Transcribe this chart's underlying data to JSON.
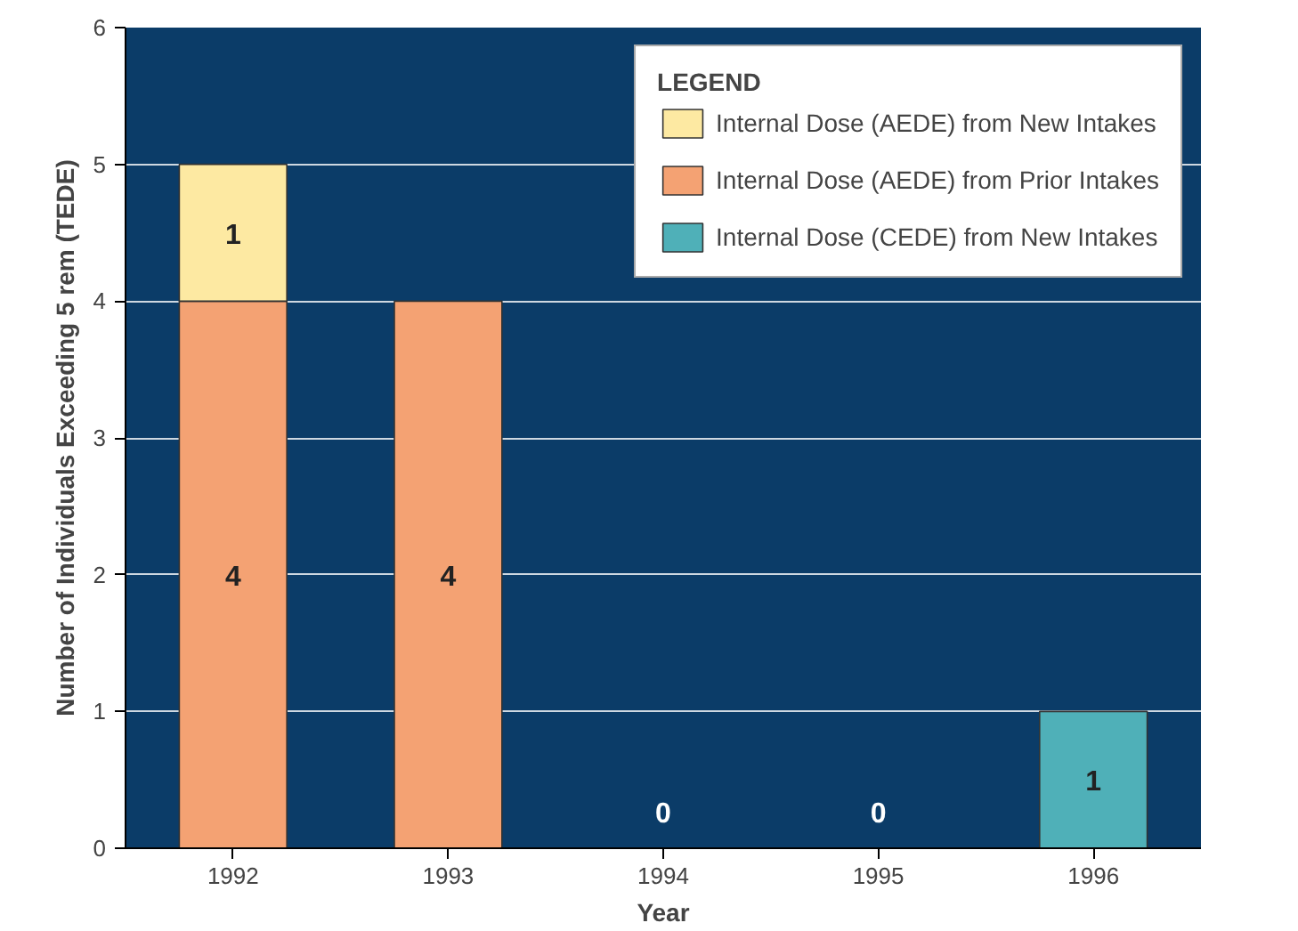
{
  "chart_data": {
    "type": "bar",
    "stacked": true,
    "xlabel": "Year",
    "ylabel": "Number of Individuals Exceeding 5 rem (TEDE)",
    "legend_title": "LEGEND",
    "categories": [
      "1992",
      "1993",
      "1994",
      "1995",
      "1996"
    ],
    "series": [
      {
        "name": "Internal Dose (AEDE) from Prior Intakes",
        "color": "#f4a273",
        "values": [
          4,
          4,
          0,
          0,
          0
        ],
        "value_labels": [
          "4",
          "4",
          "0",
          "0",
          null
        ]
      },
      {
        "name": "Internal Dose (AEDE) from New Intakes",
        "color": "#fde9a2",
        "values": [
          1,
          0,
          0,
          0,
          0
        ],
        "value_labels": [
          "1",
          null,
          null,
          null,
          null
        ]
      },
      {
        "name": "Internal Dose (CEDE) from New Intakes",
        "color": "#4fb0b8",
        "values": [
          0,
          0,
          0,
          0,
          1
        ],
        "value_labels": [
          null,
          null,
          null,
          null,
          "1"
        ]
      }
    ],
    "ylim": [
      0,
      6
    ],
    "yticks": [
      0,
      1,
      2,
      3,
      4,
      5,
      6
    ],
    "grid": "y",
    "legend": "top right"
  }
}
